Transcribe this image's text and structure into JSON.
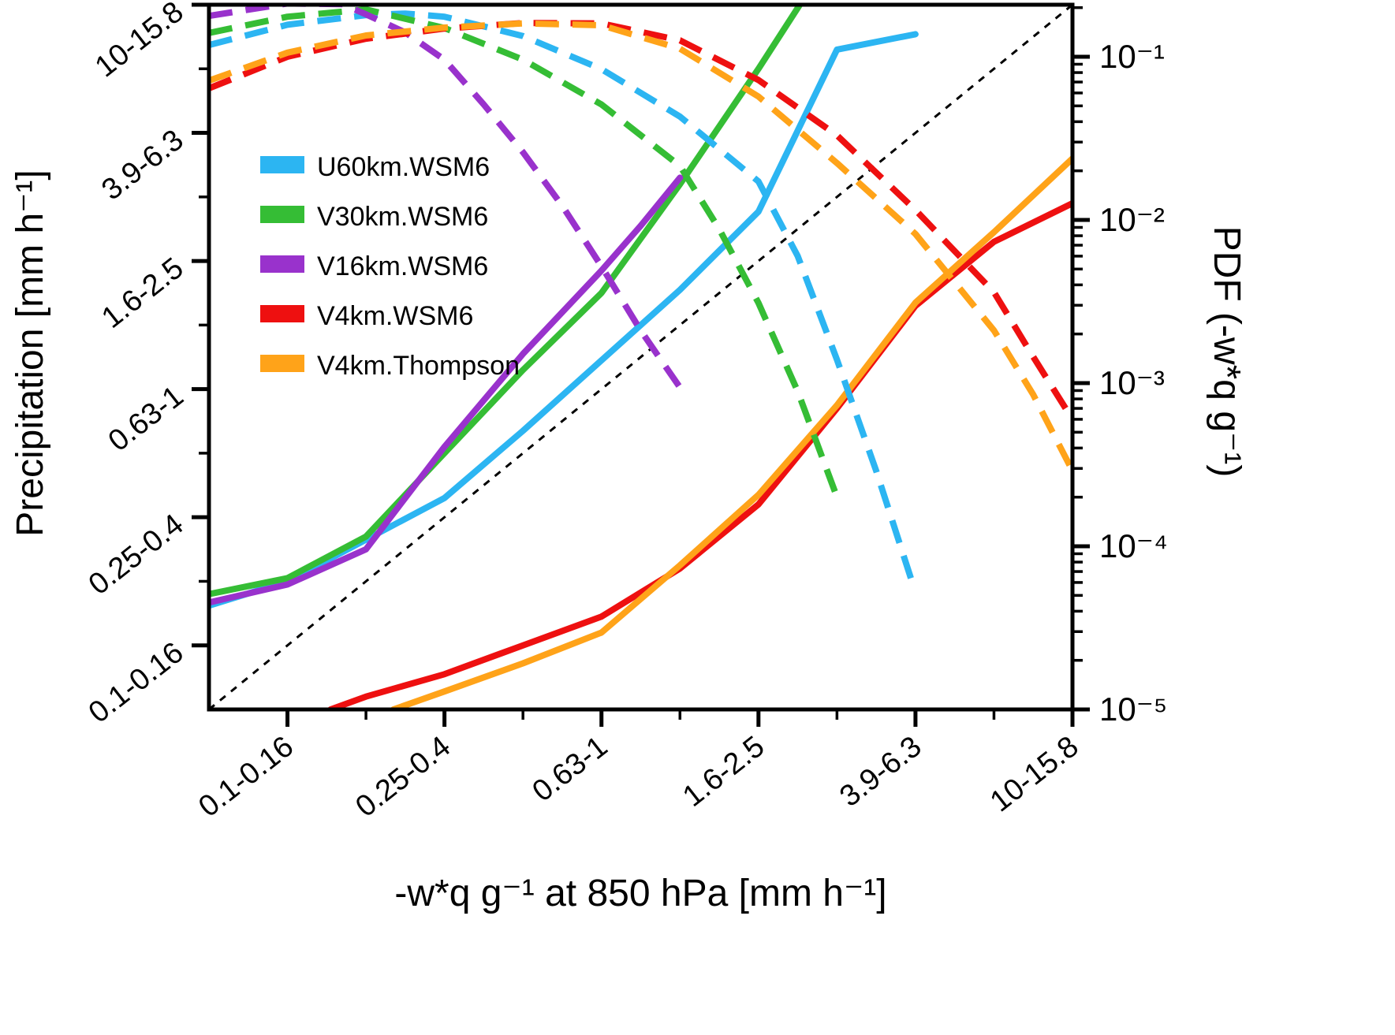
{
  "chart_data": {
    "type": "line",
    "title": "",
    "x_axis": {
      "label": "-w*q g⁻¹ at 850 hPa [mm h⁻¹]",
      "scale": "log-binned",
      "bin_labels": [
        "0.1-0.16",
        "0.25-0.4",
        "0.63-1",
        "1.6-2.5",
        "3.9-6.3",
        "10-15.8"
      ],
      "major_tick_bins": [
        0,
        2,
        4,
        6,
        8,
        10
      ],
      "minor_tick_bins": [
        1,
        3,
        5,
        7,
        9
      ],
      "bin_range": [
        -1,
        10
      ]
    },
    "y_left_axis": {
      "label": "Precipitation [mm h⁻¹]",
      "scale": "log-binned",
      "bin_labels": [
        "0.1-0.16",
        "0.25-0.4",
        "0.63-1",
        "1.6-2.5",
        "3.9-6.3",
        "10-15.8"
      ],
      "major_tick_bins": [
        0,
        2,
        4,
        6,
        8,
        10
      ],
      "minor_tick_bins": [
        1,
        3,
        5,
        7,
        9
      ],
      "bin_range": [
        -1,
        10
      ]
    },
    "y_right_axis": {
      "label": "PDF (-w*q g⁻¹)",
      "scale": "log",
      "range": [
        1e-05,
        0.2
      ],
      "ticks": [
        {
          "label": "10⁻¹",
          "value": 0.1
        },
        {
          "label": "10⁻²",
          "value": 0.01
        },
        {
          "label": "10⁻³",
          "value": 0.001
        },
        {
          "label": "10⁻⁴",
          "value": 0.0001
        },
        {
          "label": "10⁻⁵",
          "value": 1e-05
        }
      ]
    },
    "legend": {
      "position": "upper-left-inside",
      "items": [
        {
          "key": "u60km_wsm6",
          "label": "U60km.WSM6",
          "color": "#2CB5F2"
        },
        {
          "key": "v30km_wsm6",
          "label": "V30km.WSM6",
          "color": "#35BD35"
        },
        {
          "key": "v16km_wsm6",
          "label": "V16km.WSM6",
          "color": "#9932CC"
        },
        {
          "key": "v4km_wsm6",
          "label": "V4km.WSM6",
          "color": "#EE1010"
        },
        {
          "key": "v4km_thompson",
          "label": "V4km.Thompson",
          "color": "#FFA319"
        }
      ]
    },
    "series": [
      {
        "name": "U60km.WSM6",
        "measure": "precipitation",
        "key": "u60km_wsm6",
        "style": "solid",
        "axis": "left",
        "color": "#2CB5F2",
        "points": [
          [
            -1,
            0.62
          ],
          [
            0,
            1.0
          ],
          [
            1,
            1.65
          ],
          [
            2,
            2.3
          ],
          [
            3,
            3.35
          ],
          [
            4,
            4.45
          ],
          [
            5,
            5.55
          ],
          [
            6,
            6.77
          ],
          [
            7,
            9.3
          ],
          [
            8,
            9.54
          ]
        ]
      },
      {
        "name": "V30km.WSM6",
        "measure": "precipitation",
        "key": "v30km_wsm6",
        "style": "solid",
        "axis": "left",
        "color": "#35BD35",
        "points": [
          [
            -1,
            0.8
          ],
          [
            0,
            1.05
          ],
          [
            1,
            1.7
          ],
          [
            2,
            3.0
          ],
          [
            3,
            4.3
          ],
          [
            4,
            5.5
          ],
          [
            5,
            7.2
          ],
          [
            6,
            9.0
          ],
          [
            7,
            10.9
          ]
        ]
      },
      {
        "name": "V16km.WSM6",
        "measure": "precipitation",
        "key": "v16km_wsm6",
        "style": "solid",
        "axis": "left",
        "color": "#9932CC",
        "points": [
          [
            -1,
            0.67
          ],
          [
            0,
            0.95
          ],
          [
            1,
            1.5
          ],
          [
            2,
            3.1
          ],
          [
            3,
            4.55
          ],
          [
            4,
            5.85
          ],
          [
            4.5,
            6.55
          ],
          [
            5,
            7.3
          ]
        ]
      },
      {
        "name": "V4km.WSM6",
        "measure": "precipitation",
        "key": "v4km_wsm6",
        "style": "solid",
        "axis": "left",
        "color": "#EE1010",
        "points": [
          [
            0.55,
            -1
          ],
          [
            1,
            -0.8
          ],
          [
            2,
            -0.45
          ],
          [
            3,
            0.0
          ],
          [
            4,
            0.45
          ],
          [
            5,
            1.2
          ],
          [
            6,
            2.2
          ],
          [
            7,
            3.7
          ],
          [
            8,
            5.3
          ],
          [
            9,
            6.3
          ],
          [
            10,
            6.9
          ]
        ]
      },
      {
        "name": "V4km.Thompson",
        "measure": "precipitation",
        "key": "v4km_thompson",
        "style": "solid",
        "axis": "left",
        "color": "#FFA319",
        "points": [
          [
            1.35,
            -1
          ],
          [
            2,
            -0.72
          ],
          [
            3,
            -0.28
          ],
          [
            4,
            0.2
          ],
          [
            5,
            1.25
          ],
          [
            6,
            2.35
          ],
          [
            7,
            3.75
          ],
          [
            8,
            5.35
          ],
          [
            9,
            6.45
          ],
          [
            10,
            7.6
          ]
        ]
      },
      {
        "name": "U60km.WSM6",
        "measure": "pdf",
        "key": "u60km_wsm6",
        "style": "dashed",
        "axis": "right",
        "color": "#2CB5F2",
        "points": [
          [
            -1,
            0.118
          ],
          [
            0,
            0.157
          ],
          [
            1,
            0.18
          ],
          [
            1.5,
            0.184
          ],
          [
            2,
            0.176
          ],
          [
            3,
            0.134
          ],
          [
            4,
            0.084
          ],
          [
            5,
            0.043
          ],
          [
            6,
            0.0172
          ],
          [
            6.5,
            0.006
          ],
          [
            7,
            0.00139
          ],
          [
            7.5,
            0.00029
          ],
          [
            7.95,
            6.2e-05
          ]
        ]
      },
      {
        "name": "V30km.WSM6",
        "measure": "pdf",
        "key": "v30km_wsm6",
        "style": "dashed",
        "axis": "right",
        "color": "#35BD35",
        "points": [
          [
            -1,
            0.14
          ],
          [
            0,
            0.176
          ],
          [
            1,
            0.195
          ],
          [
            2,
            0.15
          ],
          [
            3,
            0.096
          ],
          [
            4,
            0.051
          ],
          [
            5,
            0.0214
          ],
          [
            5.5,
            0.0088
          ],
          [
            6,
            0.0031
          ],
          [
            6.5,
            0.00089
          ],
          [
            7,
            0.0002
          ]
        ]
      },
      {
        "name": "V16km.WSM6",
        "measure": "pdf",
        "key": "v16km_wsm6",
        "style": "dashed",
        "axis": "right",
        "color": "#9932CC",
        "points": [
          [
            -1,
            0.178
          ],
          [
            0,
            0.212
          ],
          [
            0.7,
            0.21
          ],
          [
            1,
            0.182
          ],
          [
            1.5,
            0.141
          ],
          [
            2,
            0.096
          ],
          [
            2.5,
            0.051
          ],
          [
            3,
            0.026
          ],
          [
            3.5,
            0.0122
          ],
          [
            4,
            0.0052
          ],
          [
            4.5,
            0.0021
          ],
          [
            5,
            0.00094
          ]
        ]
      },
      {
        "name": "V4km.WSM6",
        "measure": "pdf",
        "key": "v4km_wsm6",
        "style": "dashed",
        "axis": "right",
        "color": "#EE1010",
        "points": [
          [
            -1,
            0.064
          ],
          [
            0,
            0.1
          ],
          [
            1,
            0.129
          ],
          [
            2,
            0.149
          ],
          [
            3,
            0.161
          ],
          [
            4,
            0.16
          ],
          [
            5,
            0.126
          ],
          [
            6,
            0.072
          ],
          [
            7,
            0.033
          ],
          [
            8,
            0.0115
          ],
          [
            9,
            0.0036
          ],
          [
            9.5,
            0.00145
          ],
          [
            10,
            0.0006
          ]
        ]
      },
      {
        "name": "V4km.Thompson",
        "measure": "pdf",
        "key": "v4km_thompson",
        "style": "dashed",
        "axis": "right",
        "color": "#FFA319",
        "points": [
          [
            -1,
            0.0714
          ],
          [
            0,
            0.106
          ],
          [
            1,
            0.135
          ],
          [
            2,
            0.151
          ],
          [
            3,
            0.16
          ],
          [
            4,
            0.156
          ],
          [
            5,
            0.112
          ],
          [
            6,
            0.057
          ],
          [
            7,
            0.0223
          ],
          [
            8,
            0.0082
          ],
          [
            9,
            0.0021
          ],
          [
            9.5,
            0.00085
          ],
          [
            10,
            0.00029
          ]
        ]
      }
    ],
    "reference_line": {
      "name": "one-to-one",
      "style": "dotted",
      "color": "#000000",
      "from": [
        -1,
        -1
      ],
      "to": [
        10,
        10
      ]
    }
  }
}
